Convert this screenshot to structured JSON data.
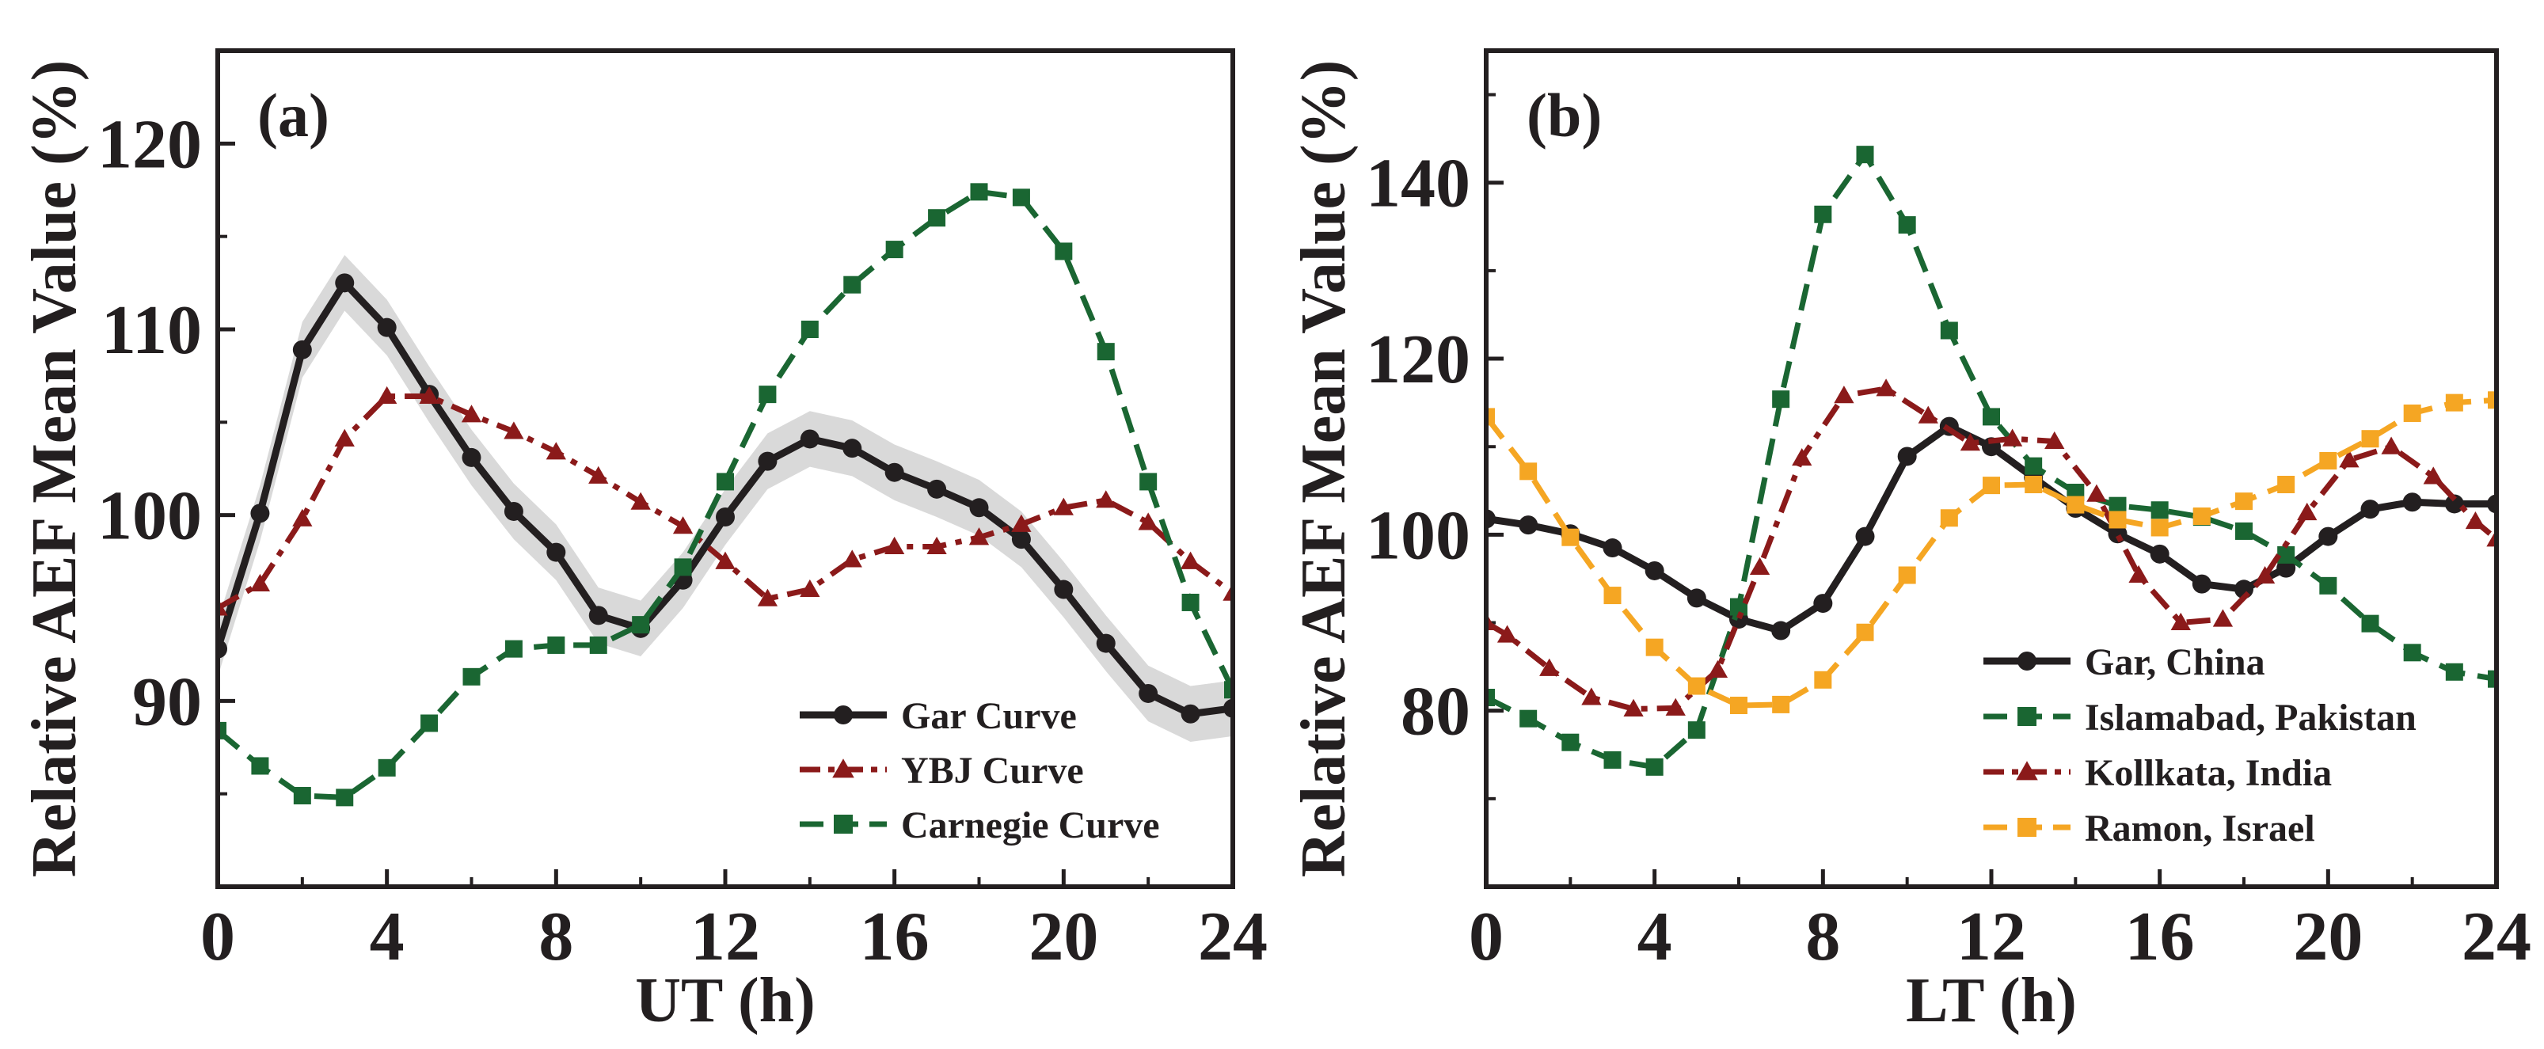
{
  "chart_data": [
    {
      "type": "line",
      "panel_label": "(a)",
      "xlabel": "UT (h)",
      "ylabel": "Relative AEF Mean Value (%)",
      "xlim": [
        0,
        24
      ],
      "ylim": [
        80,
        125
      ],
      "xticks": [
        0,
        4,
        8,
        12,
        16,
        20,
        24
      ],
      "yticks": [
        90,
        100,
        110,
        120
      ],
      "legend_position": "lower-right",
      "series": [
        {
          "name": "Gar Curve",
          "color": "#231f20",
          "line_style": "solid",
          "marker": "circle",
          "band": 1.5,
          "x": [
            0,
            1,
            2,
            3,
            4,
            5,
            6,
            7,
            8,
            9,
            10,
            11,
            12,
            13,
            14,
            15,
            16,
            17,
            18,
            19,
            20,
            21,
            22,
            23,
            24
          ],
          "y": [
            92.8,
            100.1,
            108.9,
            112.5,
            110.1,
            106.5,
            103.1,
            100.2,
            98.0,
            94.6,
            93.9,
            96.5,
            99.9,
            102.9,
            104.1,
            103.6,
            102.3,
            101.4,
            100.4,
            98.7,
            96.0,
            93.1,
            90.4,
            89.3,
            89.6
          ]
        },
        {
          "name": "YBJ Curve",
          "color": "#8b1a1a",
          "line_style": "dashdot",
          "marker": "triangle",
          "x": [
            0,
            1,
            2,
            3,
            4,
            5,
            6,
            7,
            8,
            9,
            10,
            11,
            12,
            13,
            14,
            15,
            16,
            17,
            18,
            19,
            20,
            21,
            22,
            23,
            24
          ],
          "y": [
            95.0,
            96.3,
            99.8,
            104.1,
            106.4,
            106.4,
            105.4,
            104.5,
            103.4,
            102.1,
            100.7,
            99.4,
            97.5,
            95.5,
            96.0,
            97.6,
            98.3,
            98.3,
            98.8,
            99.5,
            100.4,
            100.8,
            99.6,
            97.5,
            95.8
          ]
        },
        {
          "name": "Carnegie Curve",
          "color": "#1a6632",
          "line_style": "dashed",
          "marker": "square",
          "x": [
            0,
            1,
            2,
            3,
            4,
            5,
            6,
            7,
            8,
            9,
            10,
            11,
            12,
            13,
            14,
            15,
            16,
            17,
            18,
            19,
            20,
            21,
            22,
            23,
            24
          ],
          "y": [
            88.4,
            86.5,
            84.9,
            84.8,
            86.4,
            88.8,
            91.3,
            92.8,
            93.0,
            93.0,
            94.1,
            97.2,
            101.8,
            106.5,
            110.0,
            112.4,
            114.3,
            116.0,
            117.4,
            117.1,
            114.2,
            108.8,
            101.8,
            95.3,
            90.6
          ]
        }
      ]
    },
    {
      "type": "line",
      "panel_label": "(b)",
      "xlabel": "LT (h)",
      "ylabel": "Relative AEF Mean Value (%)",
      "xlim": [
        0,
        24
      ],
      "ylim": [
        60,
        155
      ],
      "xticks": [
        0,
        4,
        8,
        12,
        16,
        20,
        24
      ],
      "yticks": [
        80,
        100,
        120,
        140
      ],
      "legend_position": "lower-right",
      "series": [
        {
          "name": "Gar, China",
          "color": "#231f20",
          "line_style": "solid",
          "marker": "circle",
          "x": [
            0,
            1,
            2,
            3,
            4,
            5,
            6,
            7,
            8,
            9,
            10,
            11,
            12,
            13,
            14,
            15,
            16,
            17,
            18,
            19,
            20,
            21,
            22,
            23,
            24
          ],
          "y": [
            101.8,
            101.1,
            100.1,
            98.5,
            95.9,
            92.8,
            90.4,
            89.1,
            92.2,
            99.8,
            108.9,
            112.3,
            110.0,
            106.5,
            103.0,
            100.1,
            97.8,
            94.4,
            93.8,
            96.2,
            99.8,
            102.9,
            103.7,
            103.5,
            103.5
          ]
        },
        {
          "name": "Islamabad, Pakistan",
          "color": "#1a6632",
          "line_style": "dashed",
          "marker": "square",
          "x": [
            0,
            1,
            2,
            3,
            4,
            5,
            6,
            7,
            8,
            9,
            10,
            11,
            12,
            13,
            14,
            15,
            16,
            17,
            18,
            19,
            20,
            21,
            22,
            23,
            24
          ],
          "y": [
            81.5,
            79.1,
            76.4,
            74.4,
            73.6,
            77.8,
            91.8,
            115.4,
            136.4,
            143.2,
            135.2,
            123.2,
            113.4,
            107.8,
            104.8,
            103.3,
            102.8,
            102.0,
            100.4,
            97.7,
            94.2,
            89.9,
            86.6,
            84.4,
            83.6
          ]
        },
        {
          "name": "Kollkata, India",
          "color": "#8b1a1a",
          "line_style": "dashdot",
          "marker": "triangle",
          "x": [
            0,
            0.5,
            1.5,
            2.5,
            3.5,
            4.5,
            5.5,
            6.5,
            7.5,
            8.5,
            9.5,
            10.5,
            11.5,
            12.5,
            13.5,
            14.5,
            15.5,
            16.5,
            17.5,
            18.5,
            19.5,
            20.5,
            21.5,
            22.5,
            23.5,
            24
          ],
          "y": [
            90.0,
            88.6,
            84.8,
            81.5,
            80.2,
            80.3,
            84.6,
            96.3,
            108.7,
            115.8,
            116.6,
            113.5,
            110.4,
            110.9,
            110.6,
            104.6,
            95.4,
            90.0,
            90.4,
            95.3,
            102.5,
            108.5,
            110.0,
            106.6,
            101.5,
            99.5
          ]
        },
        {
          "name": "Ramon, Israel",
          "color": "#f5a623",
          "line_style": "dashed",
          "marker": "square",
          "x": [
            0,
            1,
            2,
            3,
            4,
            5,
            6,
            7,
            8,
            9,
            10,
            11,
            12,
            13,
            14,
            15,
            16,
            17,
            18,
            19,
            20,
            21,
            22,
            23,
            24
          ],
          "y": [
            113.4,
            107.2,
            99.7,
            93.1,
            87.2,
            82.8,
            80.6,
            80.7,
            83.5,
            88.9,
            95.4,
            101.9,
            105.6,
            105.7,
            103.4,
            101.7,
            100.8,
            102.1,
            103.8,
            105.7,
            108.4,
            110.9,
            113.8,
            115.0,
            115.3
          ]
        }
      ]
    }
  ]
}
